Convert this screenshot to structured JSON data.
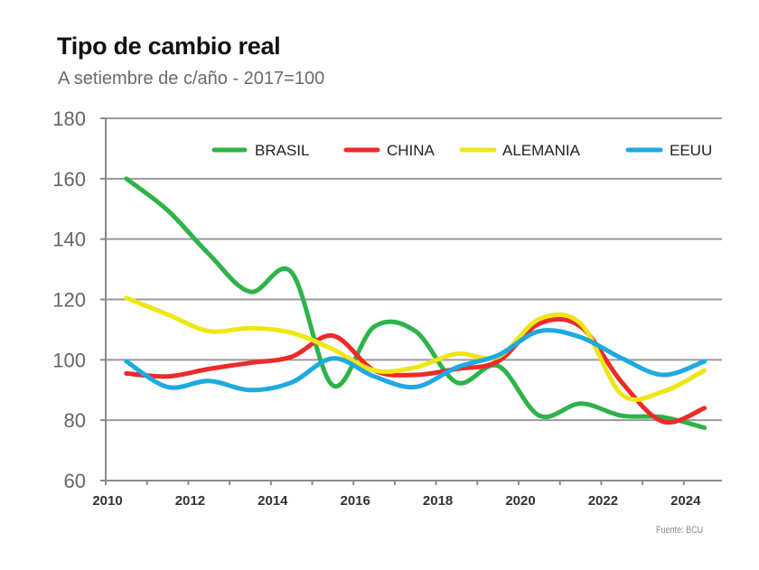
{
  "chart_data": {
    "type": "line",
    "title": "Tipo de cambio real",
    "subtitle": "A setiembre  de c/año - 2017=100",
    "source": "Fuente: BCU",
    "xlabel": "",
    "ylabel": "",
    "xlim": [
      2010,
      2025
    ],
    "ylim": [
      60,
      180
    ],
    "y_ticks": [
      60,
      80,
      100,
      120,
      140,
      160,
      180
    ],
    "x_tick_labels": [
      "2010",
      "2012",
      "2014",
      "2016",
      "2018",
      "2020",
      "2022",
      "2024"
    ],
    "x_tick_values": [
      2010,
      2012,
      2014,
      2016,
      2018,
      2020,
      2022,
      2024
    ],
    "grid": "horizontal",
    "legend_position": "top-right",
    "smoothed": true,
    "x": [
      2010.5,
      2011.5,
      2012.5,
      2013.5,
      2014.5,
      2015.5,
      2016.5,
      2017.5,
      2018.5,
      2019.5,
      2020.5,
      2021.5,
      2022.5,
      2023.5,
      2024.5
    ],
    "series": [
      {
        "name": "BRASIL",
        "color": "#2db34a",
        "values": [
          160,
          149.5,
          135,
          122.5,
          129,
          91.5,
          111,
          109.5,
          92.5,
          98,
          81.5,
          85.5,
          81.5,
          81,
          77.5
        ]
      },
      {
        "name": "CHINA",
        "color": "#ee2a2a",
        "values": [
          95.5,
          94.5,
          97,
          99,
          101,
          108,
          96.5,
          95,
          97,
          99.5,
          112,
          111,
          92.5,
          79.5,
          84
        ]
      },
      {
        "name": "ALEMANIA",
        "color": "#f0e614",
        "values": [
          120.5,
          115,
          109.5,
          110.5,
          109,
          103.5,
          96.5,
          97.5,
          102,
          101,
          113.5,
          112,
          88.5,
          89.5,
          96.5
        ]
      },
      {
        "name": "EEUU",
        "color": "#1fa9e1",
        "values": [
          99.5,
          91,
          93,
          90,
          92.5,
          100.5,
          94.5,
          91,
          97.5,
          101.5,
          109.5,
          107.5,
          100.5,
          95,
          99.5
        ]
      }
    ]
  }
}
